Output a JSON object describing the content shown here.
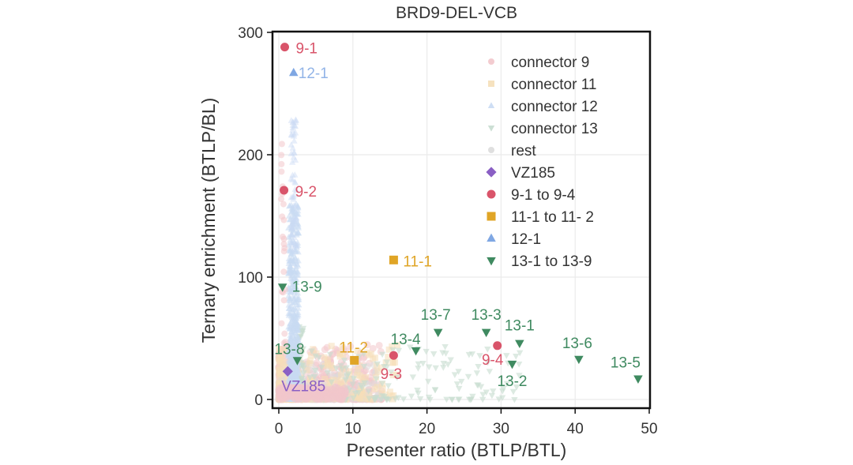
{
  "chart_data": {
    "type": "scatter",
    "title": "BRD9-DEL-VCB",
    "xlabel": "Presenter ratio (BTLP/BTL)",
    "ylabel": "Ternary enrichment (BTLP/BL)",
    "xlim": [
      0,
      50
    ],
    "ylim": [
      0,
      300
    ],
    "x_ticks": [
      "0",
      "10",
      "20",
      "30",
      "40",
      "50"
    ],
    "y_ticks": [
      "0",
      "100",
      "200",
      "300"
    ],
    "grid": true,
    "legend_position": "top-right",
    "legend": [
      {
        "label": "connector 9",
        "marker": "circle",
        "color": "#f2c6cb",
        "faded": true
      },
      {
        "label": "connector 11",
        "marker": "square",
        "color": "#f5dfb8",
        "faded": true
      },
      {
        "label": "connector 12",
        "marker": "triangle-up",
        "color": "#c9daf3",
        "faded": true
      },
      {
        "label": "connector 13",
        "marker": "triangle-down",
        "color": "#c7dccf",
        "faded": true
      },
      {
        "label": "rest",
        "marker": "circle",
        "color": "#dcdcdc",
        "faded": true
      },
      {
        "label": "VZ185",
        "marker": "diamond",
        "color": "#8a5fc4",
        "faded": false
      },
      {
        "label": "9-1 to 9-4",
        "marker": "circle",
        "color": "#d9546a",
        "faded": false
      },
      {
        "label": "11-1 to 11- 2",
        "marker": "square",
        "color": "#e0a526",
        "faded": false
      },
      {
        "label": "12-1",
        "marker": "triangle-up",
        "color": "#7fa7e3",
        "faded": false
      },
      {
        "label": "13-1 to 13-9",
        "marker": "triangle-down",
        "color": "#3f8a60",
        "faded": false
      }
    ],
    "series": [
      {
        "name": "VZ185",
        "marker": "diamond",
        "color": "#8a5fc4",
        "points": [
          {
            "x": 1.2,
            "y": 23,
            "label": "VZ185"
          }
        ]
      },
      {
        "name": "9-1 to 9-4",
        "marker": "circle",
        "color": "#d9546a",
        "points": [
          {
            "x": 0.8,
            "y": 288,
            "label": "9-1"
          },
          {
            "x": 0.7,
            "y": 171,
            "label": "9-2"
          },
          {
            "x": 15.5,
            "y": 36,
            "label": "9-3"
          },
          {
            "x": 29.5,
            "y": 44,
            "label": "9-4"
          }
        ]
      },
      {
        "name": "11-1 to 11- 2",
        "marker": "square",
        "color": "#e0a526",
        "points": [
          {
            "x": 15.5,
            "y": 114,
            "label": "11-1"
          },
          {
            "x": 10.2,
            "y": 32,
            "label": "11-2"
          }
        ]
      },
      {
        "name": "12-1",
        "marker": "triangle-up",
        "color": "#7fa7e3",
        "points": [
          {
            "x": 2.0,
            "y": 267,
            "label": "12-1"
          }
        ]
      },
      {
        "name": "13-1 to 13-9",
        "marker": "triangle-down",
        "color": "#3f8a60",
        "points": [
          {
            "x": 32.5,
            "y": 46,
            "label": "13-1"
          },
          {
            "x": 31.5,
            "y": 29,
            "label": "13-2"
          },
          {
            "x": 28.0,
            "y": 55,
            "label": "13-3"
          },
          {
            "x": 18.5,
            "y": 40,
            "label": "13-4"
          },
          {
            "x": 48.5,
            "y": 17,
            "label": "13-5"
          },
          {
            "x": 40.5,
            "y": 33,
            "label": "13-6"
          },
          {
            "x": 21.5,
            "y": 55,
            "label": "13-7"
          },
          {
            "x": 2.5,
            "y": 32,
            "label": "13-8"
          },
          {
            "x": 0.5,
            "y": 92,
            "label": "13-9"
          }
        ]
      }
    ]
  }
}
